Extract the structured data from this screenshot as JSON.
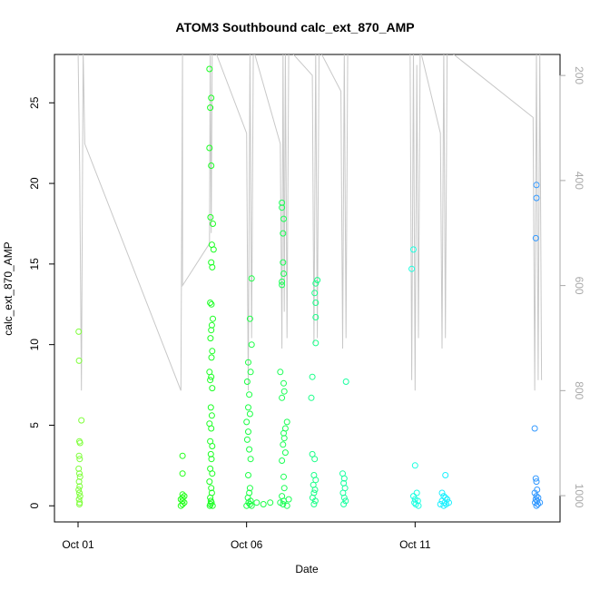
{
  "chart_data": {
    "type": "scatter",
    "title": "ATOM3 Southbound calc_ext_870_AMP",
    "xlabel": "Date",
    "ylabel": "calc_ext_870_AMP",
    "x_unit": "days since Oct 01",
    "xlim": [
      -0.7,
      14.3
    ],
    "ylim": [
      -1.0,
      28.0
    ],
    "x_ticks": [
      {
        "value": 0,
        "label": "Oct 01"
      },
      {
        "value": 5,
        "label": "Oct 06"
      },
      {
        "value": 10,
        "label": "Oct 11"
      }
    ],
    "y_ticks": [
      0,
      5,
      10,
      15,
      20,
      25
    ],
    "secondary_axis": {
      "side": "right",
      "color": "#a9a9a9",
      "reversed": true,
      "lim": [
        160,
        1050
      ],
      "ticks": [
        200,
        400,
        600,
        800,
        1000
      ]
    },
    "grid": false,
    "legend": "none",
    "series": [
      {
        "color": "#7fff3b",
        "points": [
          [
            0.02,
            10.8
          ],
          [
            0.03,
            9.0
          ],
          [
            0.1,
            5.3
          ],
          [
            0.04,
            4.0
          ],
          [
            0.06,
            3.9
          ],
          [
            0.03,
            3.1
          ],
          [
            0.05,
            2.9
          ],
          [
            0.02,
            2.3
          ],
          [
            0.04,
            2.0
          ],
          [
            0.06,
            1.8
          ],
          [
            0.03,
            1.5
          ],
          [
            0.05,
            1.2
          ],
          [
            0.02,
            1.0
          ],
          [
            0.04,
            0.8
          ],
          [
            0.06,
            0.6
          ],
          [
            0.03,
            0.4
          ],
          [
            0.05,
            0.2
          ],
          [
            0.04,
            0.1
          ]
        ]
      },
      {
        "color": "#22ff1a",
        "points": [
          [
            3.1,
            3.1
          ],
          [
            3.1,
            2.0
          ],
          [
            3.1,
            0.7
          ],
          [
            3.1,
            0.5
          ],
          [
            3.1,
            0.3
          ],
          [
            3.1,
            0.1
          ],
          [
            3.05,
            0.0
          ],
          [
            3.15,
            0.2
          ],
          [
            3.05,
            0.4
          ],
          [
            3.15,
            0.6
          ]
        ]
      },
      {
        "color": "#1aff22",
        "points": [
          [
            3.9,
            27.1
          ],
          [
            3.95,
            25.3
          ],
          [
            3.92,
            24.7
          ],
          [
            3.9,
            22.2
          ],
          [
            3.95,
            21.1
          ],
          [
            3.93,
            17.9
          ],
          [
            4.0,
            17.5
          ],
          [
            3.97,
            16.2
          ],
          [
            4.02,
            15.9
          ],
          [
            3.95,
            15.1
          ],
          [
            3.98,
            14.8
          ],
          [
            3.92,
            12.6
          ],
          [
            3.96,
            12.5
          ],
          [
            4.0,
            11.6
          ],
          [
            3.97,
            11.2
          ],
          [
            3.95,
            10.9
          ],
          [
            3.93,
            10.4
          ],
          [
            3.98,
            9.6
          ],
          [
            3.96,
            9.2
          ],
          [
            3.9,
            8.3
          ],
          [
            3.95,
            8.0
          ],
          [
            3.92,
            7.8
          ],
          [
            3.98,
            7.3
          ],
          [
            3.94,
            6.1
          ],
          [
            3.97,
            5.6
          ],
          [
            3.9,
            5.1
          ],
          [
            3.95,
            4.8
          ],
          [
            3.92,
            4.0
          ],
          [
            3.98,
            3.7
          ],
          [
            3.94,
            3.2
          ],
          [
            3.96,
            2.9
          ],
          [
            3.92,
            2.3
          ],
          [
            3.98,
            2.0
          ],
          [
            3.9,
            1.5
          ],
          [
            3.95,
            1.1
          ],
          [
            3.97,
            0.8
          ],
          [
            3.92,
            0.5
          ],
          [
            3.94,
            0.3
          ],
          [
            3.96,
            0.2
          ],
          [
            3.93,
            0.1
          ],
          [
            3.99,
            0.0
          ],
          [
            3.91,
            0.0
          ]
        ]
      },
      {
        "color": "#1aff44",
        "points": [
          [
            5.15,
            14.1
          ],
          [
            5.1,
            11.6
          ],
          [
            5.15,
            10.0
          ],
          [
            5.05,
            8.9
          ],
          [
            5.12,
            8.3
          ],
          [
            5.02,
            7.7
          ],
          [
            5.08,
            6.9
          ],
          [
            5.05,
            6.1
          ],
          [
            5.1,
            5.7
          ],
          [
            5.0,
            5.2
          ],
          [
            5.05,
            4.6
          ],
          [
            5.02,
            4.1
          ],
          [
            5.08,
            3.5
          ],
          [
            5.12,
            2.9
          ],
          [
            5.05,
            1.9
          ],
          [
            5.1,
            1.1
          ],
          [
            5.08,
            0.8
          ],
          [
            5.04,
            0.5
          ],
          [
            5.12,
            0.3
          ],
          [
            5.06,
            0.2
          ],
          [
            5.1,
            0.1
          ],
          [
            5.0,
            0.0
          ],
          [
            5.15,
            0.0
          ],
          [
            5.3,
            0.2
          ],
          [
            5.5,
            0.1
          ],
          [
            5.7,
            0.2
          ]
        ]
      },
      {
        "color": "#1aff55",
        "points": [
          [
            6.05,
            18.8
          ],
          [
            6.05,
            18.5
          ],
          [
            6.1,
            17.8
          ],
          [
            6.08,
            16.9
          ],
          [
            6.08,
            15.1
          ],
          [
            6.1,
            14.4
          ],
          [
            6.05,
            13.9
          ],
          [
            6.05,
            13.7
          ],
          [
            6.0,
            8.3
          ],
          [
            6.1,
            7.6
          ],
          [
            6.12,
            7.1
          ],
          [
            6.05,
            6.7
          ],
          [
            6.2,
            5.2
          ],
          [
            6.15,
            4.8
          ],
          [
            6.1,
            4.5
          ],
          [
            6.12,
            4.2
          ],
          [
            6.08,
            3.8
          ],
          [
            6.15,
            3.3
          ],
          [
            6.05,
            2.8
          ],
          [
            6.1,
            1.8
          ],
          [
            6.12,
            1.1
          ],
          [
            6.05,
            0.6
          ],
          [
            6.1,
            0.3
          ],
          [
            6.08,
            0.1
          ],
          [
            6.2,
            0.0
          ],
          [
            6.0,
            0.2
          ],
          [
            6.25,
            0.4
          ]
        ]
      },
      {
        "color": "#1aff88",
        "points": [
          [
            7.1,
            14.0
          ],
          [
            7.05,
            13.8
          ],
          [
            7.02,
            13.2
          ],
          [
            7.05,
            12.6
          ],
          [
            7.05,
            11.7
          ],
          [
            7.05,
            10.1
          ],
          [
            6.95,
            8.0
          ],
          [
            6.92,
            6.7
          ],
          [
            6.95,
            3.2
          ],
          [
            7.02,
            2.9
          ],
          [
            7.0,
            1.9
          ],
          [
            7.05,
            1.6
          ],
          [
            6.98,
            1.3
          ],
          [
            7.03,
            1.0
          ],
          [
            7.0,
            0.8
          ],
          [
            6.96,
            0.5
          ],
          [
            7.04,
            0.3
          ],
          [
            7.0,
            0.1
          ]
        ]
      },
      {
        "color": "#1affa0",
        "points": [
          [
            7.95,
            7.7
          ],
          [
            7.85,
            2.0
          ],
          [
            7.9,
            1.7
          ],
          [
            7.88,
            1.4
          ],
          [
            7.92,
            1.1
          ],
          [
            7.86,
            0.8
          ],
          [
            7.9,
            0.5
          ],
          [
            7.94,
            0.3
          ],
          [
            7.88,
            0.1
          ]
        ]
      },
      {
        "color": "#1affe0",
        "points": [
          [
            9.95,
            15.9
          ],
          [
            9.9,
            14.7
          ],
          [
            10.0,
            2.5
          ],
          [
            10.05,
            0.8
          ],
          [
            9.95,
            0.6
          ],
          [
            10.0,
            0.4
          ],
          [
            10.08,
            0.3
          ],
          [
            9.98,
            0.2
          ],
          [
            10.02,
            0.1
          ],
          [
            10.1,
            0.0
          ]
        ]
      },
      {
        "color": "#1af0ff",
        "points": [
          [
            10.9,
            1.9
          ],
          [
            10.8,
            0.8
          ],
          [
            10.85,
            0.6
          ],
          [
            10.9,
            0.5
          ],
          [
            10.95,
            0.4
          ],
          [
            10.8,
            0.3
          ],
          [
            10.88,
            0.2
          ],
          [
            10.92,
            0.1
          ],
          [
            10.85,
            0.0
          ],
          [
            11.0,
            0.2
          ],
          [
            10.75,
            0.1
          ]
        ]
      },
      {
        "color": "#3399ff",
        "points": [
          [
            13.6,
            19.9
          ],
          [
            13.6,
            19.1
          ],
          [
            13.58,
            16.6
          ],
          [
            13.55,
            4.8
          ],
          [
            13.58,
            1.7
          ],
          [
            13.6,
            1.5
          ],
          [
            13.62,
            1.0
          ],
          [
            13.55,
            0.8
          ],
          [
            13.6,
            0.6
          ],
          [
            13.65,
            0.5
          ],
          [
            13.58,
            0.4
          ],
          [
            13.62,
            0.3
          ],
          [
            13.56,
            0.2
          ],
          [
            13.64,
            0.1
          ],
          [
            13.6,
            0.0
          ],
          [
            13.7,
            0.2
          ]
        ]
      }
    ],
    "line_series": {
      "axis": "right",
      "color": "#c8c8c8",
      "points": [
        [
          0.0,
          150
        ],
        [
          0.05,
          380
        ],
        [
          0.1,
          800
        ],
        [
          0.15,
          150
        ],
        [
          0.2,
          330
        ],
        [
          3.05,
          800
        ],
        [
          3.1,
          150
        ],
        [
          3.1,
          600
        ],
        [
          3.9,
          520
        ],
        [
          3.92,
          150
        ],
        [
          3.95,
          500
        ],
        [
          3.98,
          150
        ],
        [
          4.05,
          150
        ],
        [
          5.0,
          310
        ],
        [
          5.05,
          800
        ],
        [
          5.1,
          150
        ],
        [
          5.15,
          700
        ],
        [
          5.2,
          150
        ],
        [
          6.0,
          330
        ],
        [
          6.05,
          720
        ],
        [
          6.08,
          150
        ],
        [
          6.12,
          650
        ],
        [
          6.15,
          150
        ],
        [
          6.2,
          700
        ],
        [
          6.25,
          150
        ],
        [
          6.95,
          200
        ],
        [
          7.0,
          710
        ],
        [
          7.05,
          150
        ],
        [
          7.1,
          700
        ],
        [
          7.15,
          150
        ],
        [
          7.8,
          230
        ],
        [
          7.85,
          720
        ],
        [
          7.9,
          150
        ],
        [
          7.95,
          700
        ],
        [
          8.0,
          150
        ],
        [
          9.85,
          150
        ],
        [
          9.9,
          780
        ],
        [
          9.95,
          150
        ],
        [
          10.0,
          800
        ],
        [
          10.05,
          180
        ],
        [
          10.1,
          700
        ],
        [
          10.15,
          150
        ],
        [
          10.75,
          310
        ],
        [
          10.8,
          720
        ],
        [
          10.85,
          150
        ],
        [
          10.9,
          700
        ],
        [
          10.95,
          150
        ],
        [
          13.5,
          280
        ],
        [
          13.55,
          800
        ],
        [
          13.6,
          150
        ],
        [
          13.65,
          780
        ],
        [
          13.7,
          150
        ],
        [
          13.75,
          780
        ]
      ]
    }
  }
}
